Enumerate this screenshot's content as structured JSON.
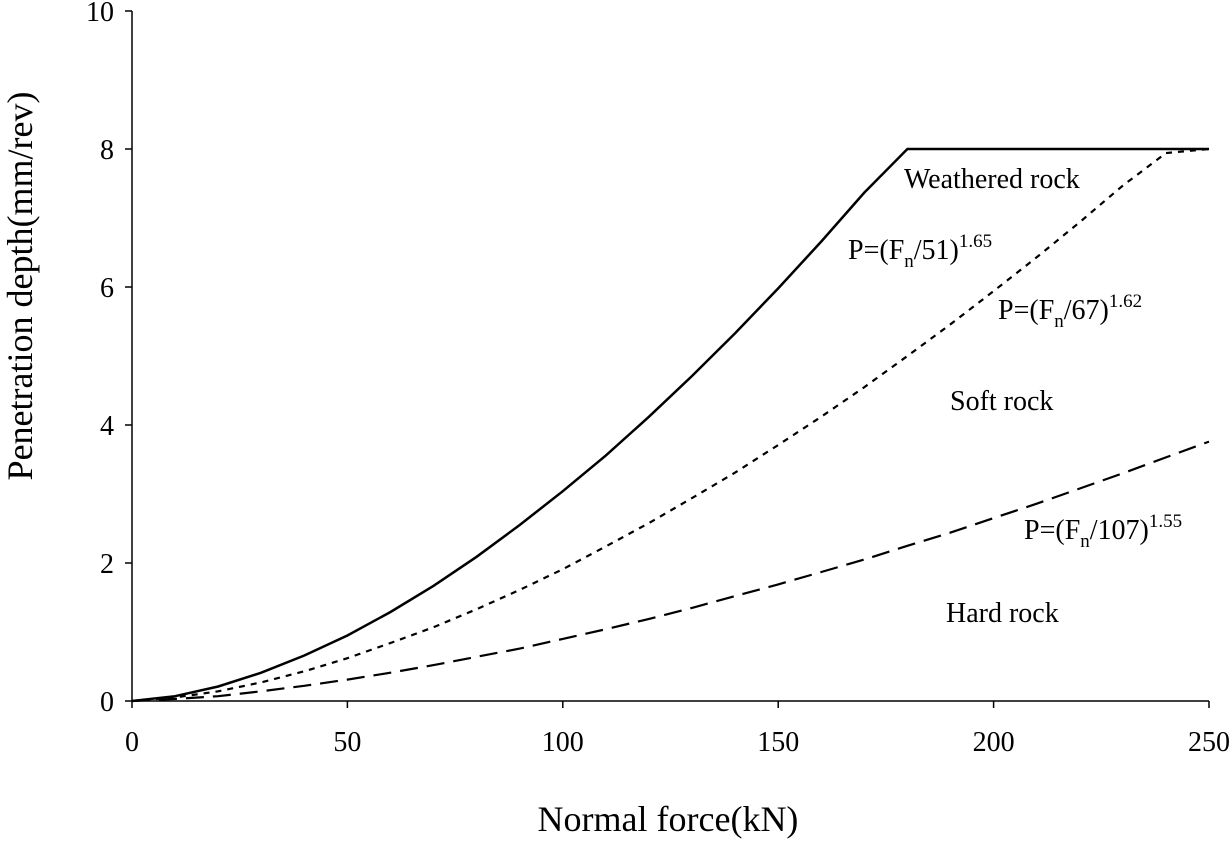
{
  "chart_data": {
    "type": "line",
    "title": "",
    "xlabel": "Normal force(kN)",
    "ylabel": "Penetration depth(mm/rev)",
    "xlim": [
      0,
      250
    ],
    "ylim": [
      0,
      10
    ],
    "xticks": [
      0,
      50,
      100,
      150,
      200,
      250
    ],
    "yticks": [
      0,
      2,
      4,
      6,
      8,
      10
    ],
    "grid": false,
    "legend": "none",
    "series": [
      {
        "style": "solid",
        "x": [
          0,
          10,
          20,
          30,
          40,
          50,
          60,
          70,
          80,
          90,
          100,
          110,
          120,
          130,
          140,
          150,
          160,
          170,
          180,
          190,
          200,
          210,
          220,
          230,
          240,
          250
        ],
        "y": [
          0,
          0.07,
          0.21,
          0.41,
          0.66,
          0.95,
          1.29,
          1.67,
          2.09,
          2.55,
          3.04,
          3.56,
          4.12,
          4.71,
          5.33,
          5.98,
          6.66,
          7.37,
          8.0,
          8.0,
          8.0,
          8.0,
          8.0,
          8.0,
          8.0,
          8.0
        ]
      },
      {
        "style": "dotted",
        "x": [
          0,
          10,
          20,
          30,
          40,
          50,
          60,
          70,
          80,
          90,
          100,
          110,
          120,
          130,
          140,
          150,
          160,
          170,
          180,
          190,
          200,
          210,
          220,
          230,
          240,
          250
        ],
        "y": [
          0,
          0.05,
          0.14,
          0.27,
          0.43,
          0.62,
          0.84,
          1.07,
          1.33,
          1.61,
          1.91,
          2.24,
          2.58,
          2.94,
          3.31,
          3.71,
          4.12,
          4.55,
          5.0,
          5.46,
          5.94,
          6.43,
          6.94,
          7.47,
          7.94,
          8.0
        ]
      },
      {
        "style": "dashed",
        "x": [
          0,
          10,
          20,
          30,
          40,
          50,
          60,
          70,
          80,
          90,
          100,
          110,
          120,
          130,
          140,
          150,
          160,
          170,
          180,
          190,
          200,
          210,
          220,
          230,
          240,
          250
        ],
        "y": [
          0,
          0.03,
          0.07,
          0.14,
          0.22,
          0.31,
          0.41,
          0.52,
          0.64,
          0.76,
          0.9,
          1.04,
          1.19,
          1.35,
          1.52,
          1.69,
          1.87,
          2.05,
          2.25,
          2.44,
          2.65,
          2.86,
          3.08,
          3.3,
          3.53,
          3.76
        ]
      }
    ],
    "annotations": {
      "weathered": "Weathered rock",
      "soft": "Soft rock",
      "hard": "Hard rock",
      "eq_weathered": {
        "prefix": "P=(F",
        "sub": "n",
        "mid": "/51)",
        "sup": "1.65"
      },
      "eq_soft": {
        "prefix": "P=(F",
        "sub": "n",
        "mid": "/67)",
        "sup": "1.62"
      },
      "eq_hard": {
        "prefix": "P=(F",
        "sub": "n",
        "mid": "/107)",
        "sup": "1.55"
      }
    }
  }
}
